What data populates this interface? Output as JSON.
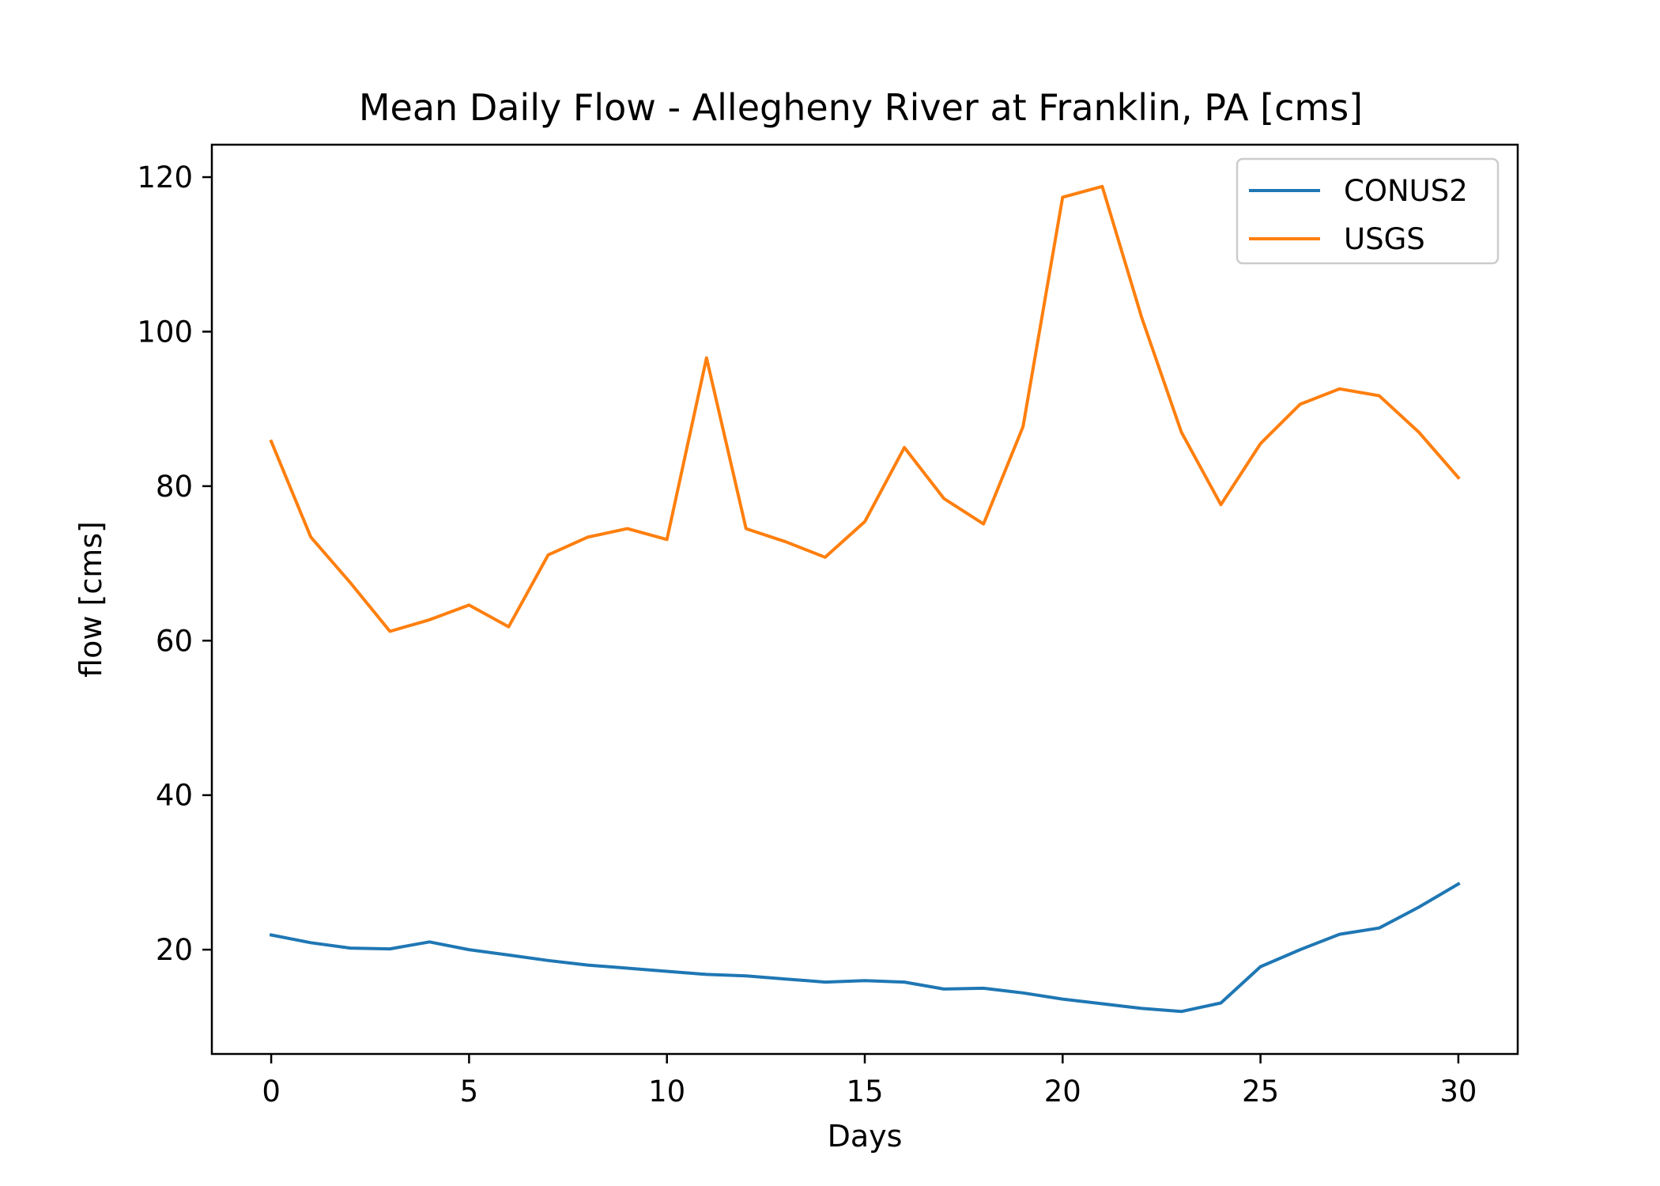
{
  "chart_data": {
    "type": "line",
    "title": "Mean Daily Flow - Allegheny River at Franklin, PA [cms]",
    "xlabel": "Days",
    "ylabel": "flow [cms]",
    "xlim": [
      -1.5,
      31.5
    ],
    "ylim": [
      6.5,
      124.2
    ],
    "xticks": [
      0,
      5,
      10,
      15,
      20,
      25,
      30
    ],
    "xtick_labels": [
      "0",
      "5",
      "10",
      "15",
      "20",
      "25",
      "30"
    ],
    "yticks": [
      20,
      40,
      60,
      80,
      100,
      120
    ],
    "ytick_labels": [
      "20",
      "40",
      "60",
      "80",
      "100",
      "120"
    ],
    "grid": false,
    "legend_position": "top-right",
    "x": [
      0,
      1,
      2,
      3,
      4,
      5,
      6,
      7,
      8,
      9,
      10,
      11,
      12,
      13,
      14,
      15,
      16,
      17,
      18,
      19,
      20,
      21,
      22,
      23,
      24,
      25,
      26,
      27,
      28,
      29,
      30
    ],
    "series": [
      {
        "name": "CONUS2",
        "color": "#1f77b4",
        "values": [
          21.9,
          20.9,
          20.2,
          20.1,
          21.0,
          20.0,
          19.3,
          18.6,
          18.0,
          17.6,
          17.2,
          16.8,
          16.6,
          16.2,
          15.8,
          16.0,
          15.8,
          14.9,
          15.0,
          14.4,
          13.6,
          13.0,
          12.4,
          12.0,
          13.1,
          17.8,
          20.0,
          22.0,
          22.8,
          25.5,
          28.5
        ]
      },
      {
        "name": "USGS",
        "color": "#ff7f0e",
        "values": [
          85.8,
          73.4,
          67.5,
          61.2,
          62.7,
          64.6,
          61.8,
          71.1,
          73.4,
          74.5,
          73.1,
          96.6,
          74.5,
          72.8,
          70.8,
          75.4,
          85.0,
          78.4,
          75.1,
          87.7,
          117.4,
          118.8,
          101.8,
          87.0,
          77.6,
          85.5,
          90.6,
          92.6,
          91.7,
          87.0,
          81.1
        ]
      }
    ]
  }
}
